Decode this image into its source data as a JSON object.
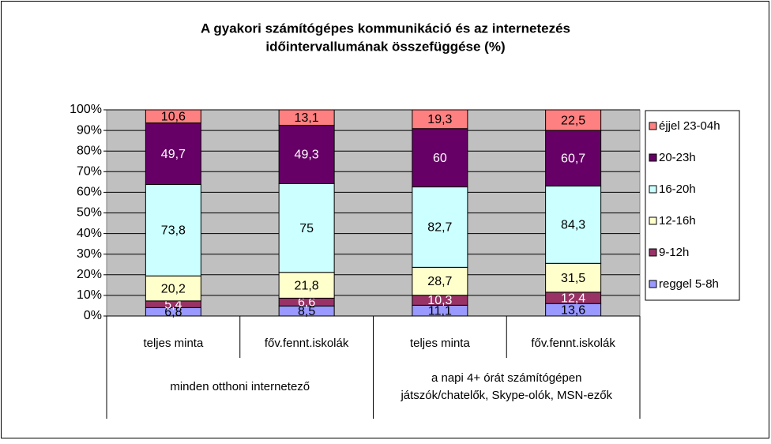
{
  "chart_data": {
    "type": "bar",
    "stacking": "percent",
    "title": [
      "A gyakori számítógépes kommunikáció és az internetezés",
      "időintervallumának összefüggése (%)"
    ],
    "categories": [
      "teljes minta",
      "főv.fennt.iskolák",
      "teljes minta",
      "főv.fennt.iskolák"
    ],
    "groups": [
      [
        "minden otthoni internetező"
      ],
      [
        "a napi 4+ órát számítógépen",
        "játszók/chatelők, Skype-olók, MSN-ezők"
      ]
    ],
    "series": [
      {
        "name": "reggel 5-8h",
        "color": "#9999ff",
        "values": [
          6.8,
          8.5,
          11.1,
          13.6
        ],
        "value_labels": [
          "6,8",
          "8,5",
          "11,1",
          "13,6"
        ]
      },
      {
        "name": "9-12h",
        "color": "#993366",
        "values": [
          5.4,
          6.6,
          10.3,
          12.4
        ],
        "value_labels": [
          "5,4",
          "6,6",
          "10,3",
          "12,4"
        ]
      },
      {
        "name": "12-16h",
        "color": "#ffffcc",
        "values": [
          20.2,
          21.8,
          28.7,
          31.5
        ],
        "value_labels": [
          "20,2",
          "21,8",
          "28,7",
          "31,5"
        ]
      },
      {
        "name": "16-20h",
        "color": "#ccffff",
        "values": [
          73.8,
          75,
          82.7,
          84.3
        ],
        "value_labels": [
          "73,8",
          "75",
          "82,7",
          "84,3"
        ]
      },
      {
        "name": "20-23h",
        "color": "#660066",
        "values": [
          49.7,
          49.3,
          60,
          60.7
        ],
        "value_labels": [
          "49,7",
          "49,3",
          "60",
          "60,7"
        ]
      },
      {
        "name": "éjjel 23-04h",
        "color": "#ff8080",
        "values": [
          10.6,
          13.1,
          19.3,
          22.5
        ],
        "value_labels": [
          "10,6",
          "13,1",
          "19,3",
          "22,5"
        ]
      }
    ],
    "ylim": [
      0,
      100
    ],
    "yticks": [
      {
        "value": 0,
        "label": "0%"
      },
      {
        "value": 10,
        "label": "10%"
      },
      {
        "value": 20,
        "label": "20%"
      },
      {
        "value": 30,
        "label": "30%"
      },
      {
        "value": 40,
        "label": "40%"
      },
      {
        "value": 50,
        "label": "50%"
      },
      {
        "value": 60,
        "label": "60%"
      },
      {
        "value": 70,
        "label": "70%"
      },
      {
        "value": 80,
        "label": "80%"
      },
      {
        "value": 90,
        "label": "90%"
      },
      {
        "value": 100,
        "label": "100%"
      }
    ],
    "grid": true,
    "legend": "right"
  }
}
